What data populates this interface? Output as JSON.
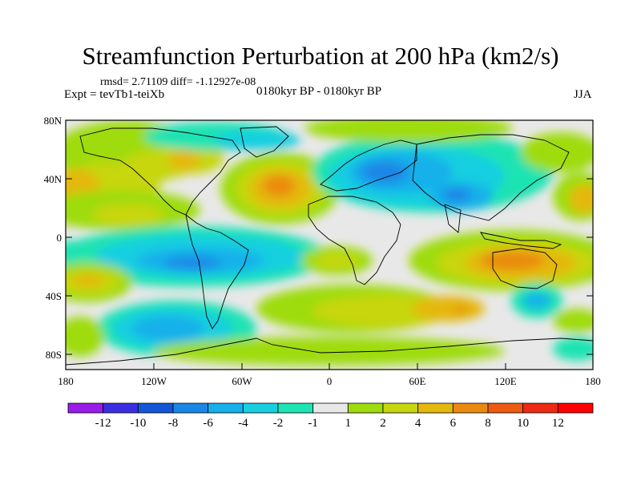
{
  "title": "Streamfunction Perturbation at 200 hPa (km2/s)",
  "stats": "rmsd= 2.71109 diff= -1.12927e-08",
  "experiment": "Expt = tevTb1-teiXb",
  "period": "0180kyr BP - 0180kyr BP",
  "season": "JJA",
  "lat_ticks": [
    "80N",
    "40N",
    "0",
    "40S",
    "80S"
  ],
  "lon_ticks": [
    "180",
    "120W",
    "60W",
    "0",
    "60E",
    "120E",
    "180"
  ],
  "colorbar": {
    "labels": [
      "-12",
      "-10",
      "-8",
      "-6",
      "-4",
      "-2",
      "-1",
      "1",
      "2",
      "4",
      "6",
      "8",
      "10",
      "12"
    ],
    "colors": [
      "#9a1ce8",
      "#3a2fe0",
      "#1457d6",
      "#1a86e6",
      "#17b0ea",
      "#17cfe0",
      "#1ee3b2",
      "#e8e8e8",
      "#9fdc0e",
      "#c8d60f",
      "#e5b80e",
      "#ea8a10",
      "#ed5a12",
      "#ee2a14",
      "#ff0000"
    ]
  }
}
